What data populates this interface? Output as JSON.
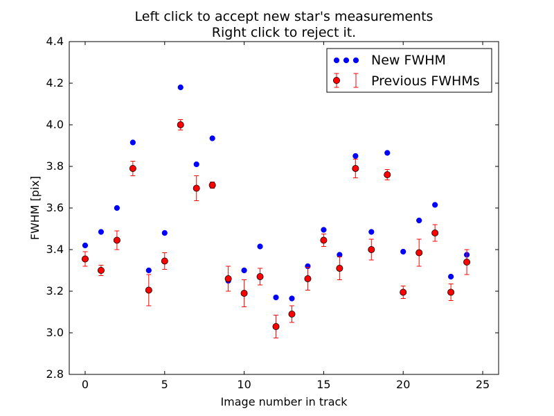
{
  "chart_data": {
    "type": "scatter",
    "title": "Left click to accept new star's measurements",
    "subtitle": "Right click to reject it.",
    "xlabel": "Image number in track",
    "ylabel": "FWHM [pix]",
    "xlim": [
      -1,
      26
    ],
    "ylim": [
      2.8,
      4.4
    ],
    "xticks": [
      0,
      5,
      10,
      15,
      20,
      25
    ],
    "yticks": [
      2.8,
      3.0,
      3.2,
      3.4,
      3.6,
      3.8,
      4.0,
      4.2,
      4.4
    ],
    "xtick_labels": [
      "0",
      "5",
      "10",
      "15",
      "20",
      "25"
    ],
    "ytick_labels": [
      "2.8",
      "3.0",
      "3.2",
      "3.4",
      "3.6",
      "3.8",
      "4.0",
      "4.2",
      "4.4"
    ],
    "grid": false,
    "legend_position": "top-right",
    "series": [
      {
        "name": "New FWHM",
        "color": "#0000ff",
        "marker": "dot",
        "x": [
          0,
          1,
          2,
          3,
          4,
          5,
          6,
          7,
          8,
          9,
          10,
          11,
          12,
          13,
          14,
          15,
          16,
          17,
          18,
          19,
          20,
          21,
          22,
          23,
          24
        ],
        "y": [
          3.42,
          3.485,
          3.6,
          3.915,
          3.3,
          3.48,
          4.18,
          3.81,
          3.935,
          3.25,
          3.3,
          3.415,
          3.17,
          3.165,
          3.32,
          3.495,
          3.375,
          3.85,
          3.485,
          3.865,
          3.39,
          3.54,
          3.615,
          3.27,
          3.375
        ]
      },
      {
        "name": "Previous FWHMs",
        "color": "#ff0000",
        "marker": "circle-with-errorbars",
        "x": [
          0,
          1,
          2,
          3,
          4,
          5,
          6,
          7,
          8,
          9,
          10,
          11,
          12,
          13,
          14,
          15,
          16,
          17,
          18,
          19,
          20,
          21,
          22,
          23,
          24
        ],
        "y": [
          3.355,
          3.3,
          3.445,
          3.79,
          3.205,
          3.345,
          4.0,
          3.695,
          3.71,
          3.26,
          3.19,
          3.27,
          3.03,
          3.09,
          3.26,
          3.445,
          3.31,
          3.79,
          3.4,
          3.76,
          3.195,
          3.385,
          3.48,
          3.195,
          3.34
        ],
        "err": [
          0.035,
          0.025,
          0.045,
          0.035,
          0.075,
          0.04,
          0.025,
          0.06,
          0.015,
          0.06,
          0.065,
          0.04,
          0.055,
          0.04,
          0.055,
          0.03,
          0.055,
          0.045,
          0.05,
          0.025,
          0.03,
          0.065,
          0.04,
          0.04,
          0.06
        ]
      }
    ]
  }
}
